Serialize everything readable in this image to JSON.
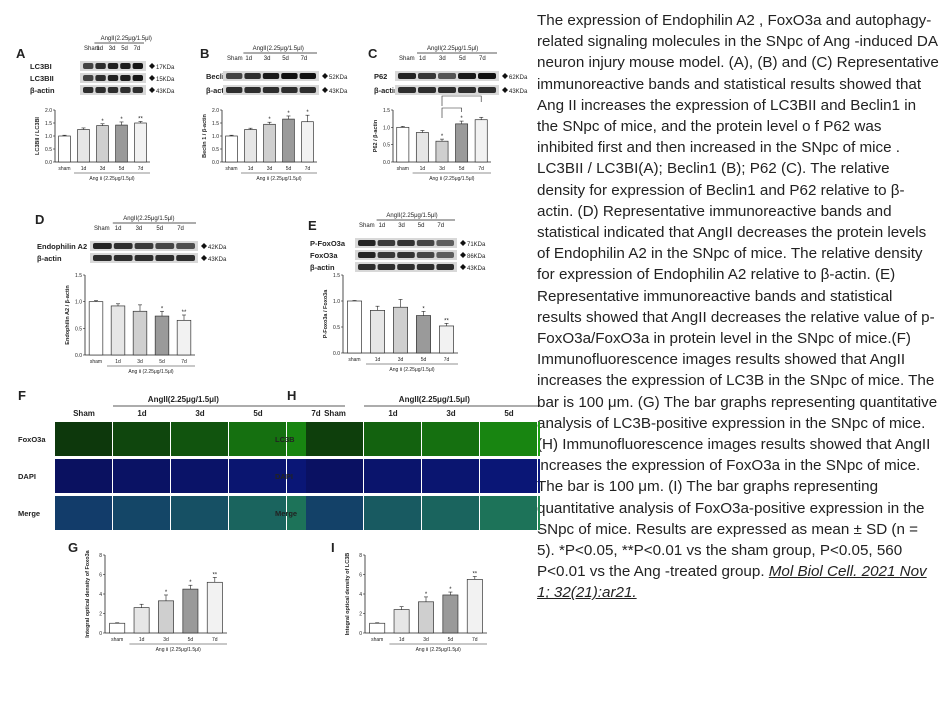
{
  "caption": {
    "text": "The expression of Endophilin A2 , FoxO3a and autophagy-related signaling molecules in the SNpc of Ang -induced DA neuron injury mouse model. (A), (B) and (C) Representative immunoreactive bands and statistical results showed that Ang II increases the expression of LC3BII and Beclin1 in the SNpc of mice, and the protein level o f P62 was inhibited first and then increased in the SNpc of mice . LC3BII / LC3BI(A); Beclin1 (B); P62 (C). The relative density for expression of Beclin1 and P62 relative to β-actin. (D) Representative immunoreactive bands and statistical indicated that AngII decreases the protein levels of Endophilin A2 in the SNpc of mice. The relative density for expression of Endophilin A2 relative to β-actin. (E) Representative immunoreactive bands and statistical results showed that AngII decreases the relative value of p-FoxO3a/FoxO3a in protein level in the SNpc of mice.(F) Immunofluorescence images results showed that AngII increases the expression of LC3B in the SNpc of mice. The bar is 100 μm. (G) The bar graphs representing quantitative analysis of LC3B-positive expression in the SNpc of mice. (H) Immunofluorescence images results showed that AngII increases the expression of FoxO3a in the SNpc of mice. The bar is 100 μm. (I) The bar graphs representing quantitative analysis of FoxO3a-positive expression in the SNpc of mice. Results are expressed as mean ± SD (n = 5). *P<0.05, **P<0.01 vs the sham group,  P<0.05, 560   P<0.01 vs the Ang -treated group.",
    "citation": "Mol Biol Cell. 2021 Nov 1; 32(21):ar21."
  },
  "figure": {
    "group_header_short": "AngII(2.25μg/1.5μl)",
    "group_header_if": "AngII(2.25μg/1.5μl)",
    "xaxis_label": "Ang Ⅱ (2.25μg/1.5μl)",
    "lanes": [
      "Sham",
      "1d",
      "3d",
      "5d",
      "7d"
    ],
    "xcats": [
      "sham",
      "1d",
      "3d",
      "5d",
      "7d"
    ],
    "fill_colors": [
      "#ffffff",
      "#e6e6e6",
      "#cfcfcf",
      "#9a9a9a",
      "#f2f2f2"
    ],
    "panels": [
      {
        "letter": "A",
        "blots": [
          "LC3BI",
          "LC3BII",
          "β-actin"
        ],
        "kda": [
          "17KDa",
          "15KDa",
          "43KDa"
        ],
        "ylabel": "LC3BII / LC3BI",
        "yticks": [
          "0.0",
          "0.5",
          "1.0",
          "1.5",
          "2.0"
        ],
        "chart_data": {
          "type": "bar",
          "categories": [
            "sham",
            "1d",
            "3d",
            "5d",
            "7d"
          ],
          "values": [
            1.0,
            1.25,
            1.4,
            1.42,
            1.5
          ],
          "errors": [
            0.03,
            0.06,
            0.07,
            0.12,
            0.06
          ],
          "marks": [
            "",
            "",
            "*",
            "*",
            "**"
          ],
          "ylim": [
            0,
            2
          ]
        }
      },
      {
        "letter": "B",
        "blots": [
          "Beclin1",
          "β-actin"
        ],
        "kda": [
          "52KDa",
          "43KDa"
        ],
        "ylabel": "Beclin 1 / β-actin",
        "yticks": [
          "0.0",
          "0.5",
          "1.0",
          "1.5",
          "2.0"
        ],
        "chart_data": {
          "type": "bar",
          "categories": [
            "sham",
            "1d",
            "3d",
            "5d",
            "7d"
          ],
          "values": [
            1.0,
            1.25,
            1.45,
            1.65,
            1.55
          ],
          "errors": [
            0.03,
            0.05,
            0.08,
            0.12,
            0.25
          ],
          "marks": [
            "",
            "",
            "*",
            "*",
            "*"
          ],
          "ylim": [
            0,
            2
          ]
        }
      },
      {
        "letter": "C",
        "blots": [
          "P62",
          "β-actin"
        ],
        "kda": [
          "62KDa",
          "43KDa"
        ],
        "ylabel": "P62 / β-actin",
        "yticks": [
          "0.0",
          "0.5",
          "1.0",
          "1.5"
        ],
        "chart_data": {
          "type": "bar",
          "categories": [
            "sham",
            "1d",
            "3d",
            "5d",
            "7d"
          ],
          "values": [
            1.0,
            0.85,
            0.6,
            1.1,
            1.22
          ],
          "errors": [
            0.03,
            0.06,
            0.06,
            0.08,
            0.07
          ],
          "marks": [
            "",
            "",
            "*",
            "*",
            ""
          ],
          "ylim": [
            0,
            1.5
          ]
        }
      },
      {
        "letter": "D",
        "blots": [
          "Endophilin A2",
          "β-actin"
        ],
        "kda": [
          "42KDa",
          "43KDa"
        ],
        "ylabel": "Endophilin A2 / β-actin",
        "yticks": [
          "0.0",
          "0.5",
          "1.0",
          "1.5"
        ],
        "chart_data": {
          "type": "bar",
          "categories": [
            "sham",
            "1d",
            "3d",
            "5d",
            "7d"
          ],
          "values": [
            1.0,
            0.92,
            0.82,
            0.73,
            0.65
          ],
          "errors": [
            0.02,
            0.04,
            0.12,
            0.09,
            0.1
          ],
          "marks": [
            "",
            "",
            "",
            "*",
            "**"
          ],
          "ylim": [
            0,
            1.5
          ]
        }
      },
      {
        "letter": "E",
        "blots": [
          "P-FoxO3a",
          "FoxO3a",
          "β-actin"
        ],
        "kda": [
          "71KDa",
          "86KDa",
          "43KDa"
        ],
        "ylabel": "P-Foxo3a / Foxo3a",
        "yticks": [
          "0.0",
          "0.5",
          "1.0",
          "1.5"
        ],
        "chart_data": {
          "type": "bar",
          "categories": [
            "sham",
            "1d",
            "3d",
            "5d",
            "7d"
          ],
          "values": [
            1.0,
            0.82,
            0.88,
            0.72,
            0.52
          ],
          "errors": [
            0.01,
            0.08,
            0.15,
            0.08,
            0.05
          ],
          "marks": [
            "",
            "",
            "",
            "*",
            "**"
          ],
          "ylim": [
            0,
            1.5
          ]
        }
      },
      {
        "letter": "G",
        "ylabel": "Integral optical density of Foxo3a",
        "yticks": [
          "0",
          "2",
          "4",
          "6",
          "8"
        ],
        "chart_data": {
          "type": "bar",
          "categories": [
            "sham",
            "1d",
            "3d",
            "5d",
            "7d"
          ],
          "values": [
            1.0,
            2.6,
            3.3,
            4.5,
            5.2
          ],
          "errors": [
            0.05,
            0.35,
            0.6,
            0.4,
            0.5
          ],
          "marks": [
            "",
            "",
            "*",
            "*",
            "**"
          ],
          "ylim": [
            0,
            8
          ]
        }
      },
      {
        "letter": "I",
        "ylabel": "Integral optical density of LC3B",
        "yticks": [
          "0",
          "2",
          "4",
          "6",
          "8"
        ],
        "chart_data": {
          "type": "bar",
          "categories": [
            "sham",
            "1d",
            "3d",
            "5d",
            "7d"
          ],
          "values": [
            1.0,
            2.4,
            3.2,
            3.9,
            5.5
          ],
          "errors": [
            0.05,
            0.3,
            0.5,
            0.3,
            0.3
          ],
          "marks": [
            "",
            "",
            "*",
            "*",
            "**"
          ],
          "ylim": [
            0,
            8
          ]
        }
      }
    ],
    "if_panels": [
      {
        "letter": "F",
        "rows": [
          "FoxO3a",
          "DAPI",
          "Merge"
        ],
        "intensity": [
          0.15,
          0.25,
          0.35,
          0.55,
          0.7
        ]
      },
      {
        "letter": "H",
        "rows": [
          "LC3B",
          "DAPI",
          "Merge"
        ],
        "intensity": [
          0.2,
          0.45,
          0.55,
          0.7,
          0.9
        ]
      }
    ]
  }
}
